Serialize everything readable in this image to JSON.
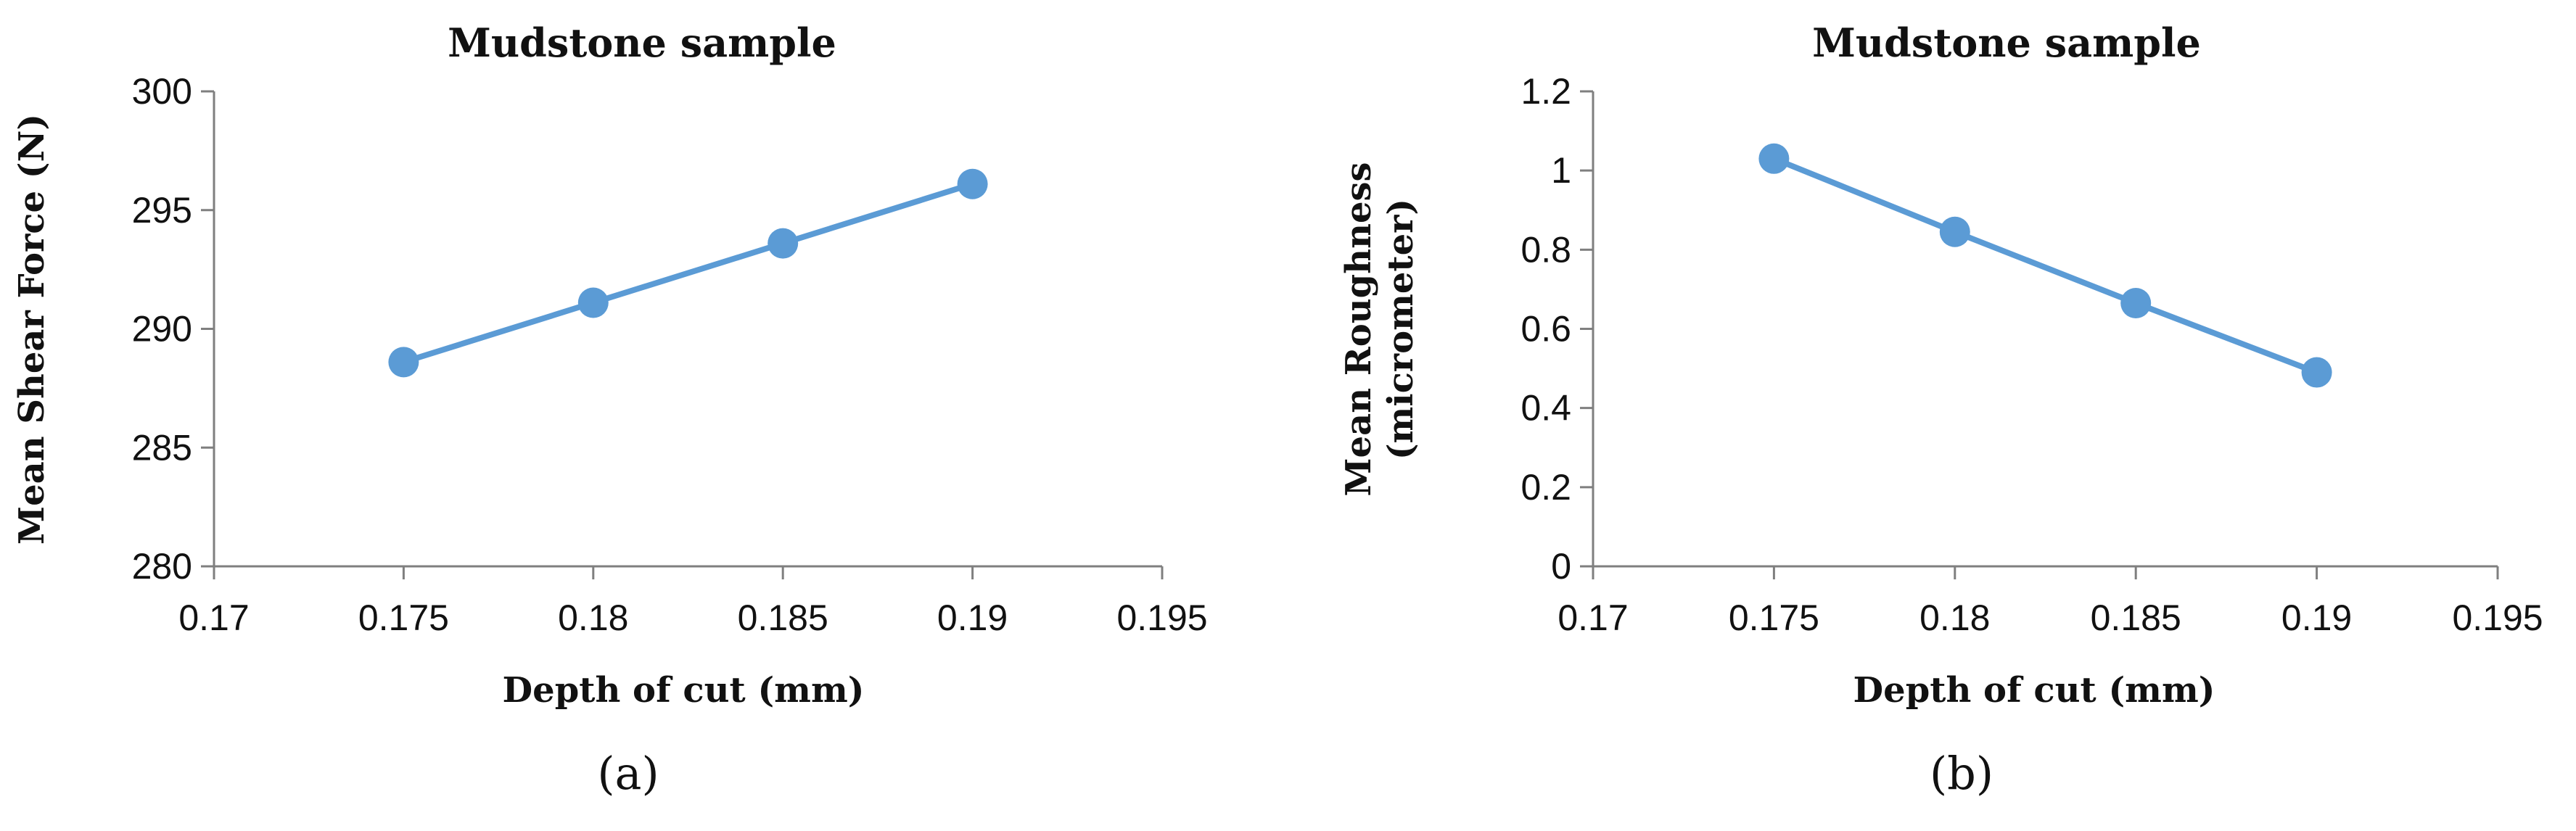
{
  "chart_data": [
    {
      "type": "line",
      "panel_label": "(a)",
      "title": "Mudstone sample",
      "xlabel": "Depth of cut (mm)",
      "ylabel": "Mean Shear Force (N)",
      "xlim": [
        0.17,
        0.195
      ],
      "ylim": [
        280,
        300
      ],
      "x_ticks": [
        "0.17",
        "0.175",
        "0.18",
        "0.185",
        "0.19",
        "0.195"
      ],
      "y_ticks": [
        "280",
        "285",
        "290",
        "295",
        "300"
      ],
      "grid": false,
      "legend": "none",
      "color": "#5b9bd5",
      "series": [
        {
          "x": [
            0.175,
            0.18,
            0.185,
            0.19
          ],
          "y": [
            288.6,
            291.1,
            293.6,
            296.1
          ]
        }
      ]
    },
    {
      "type": "line",
      "panel_label": "(b)",
      "title": "Mudstone sample",
      "xlabel": "Depth of cut (mm)",
      "ylabel": "Mean Roughness (micrometer)",
      "ylabel_lines": [
        "Mean Roughness",
        "(micrometer)"
      ],
      "xlim": [
        0.17,
        0.195
      ],
      "ylim": [
        0,
        1.2
      ],
      "x_ticks": [
        "0.17",
        "0.175",
        "0.18",
        "0.185",
        "0.19",
        "0.195"
      ],
      "y_ticks": [
        "0",
        "0.2",
        "0.4",
        "0.6",
        "0.8",
        "1",
        "1.2"
      ],
      "grid": false,
      "legend": "none",
      "color": "#5b9bd5",
      "series": [
        {
          "x": [
            0.175,
            0.18,
            0.185,
            0.19
          ],
          "y": [
            1.03,
            0.845,
            0.665,
            0.49
          ]
        }
      ]
    }
  ]
}
